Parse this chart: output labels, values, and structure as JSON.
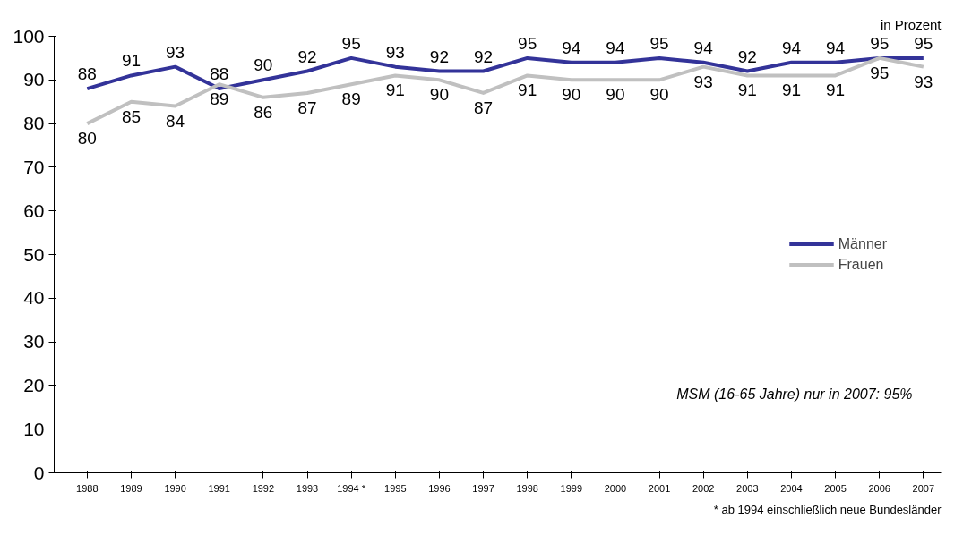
{
  "chart_data": {
    "type": "line",
    "categories": [
      "1988",
      "1989",
      "1990",
      "1991",
      "1992",
      "1993",
      "1994 *",
      "1995",
      "1996",
      "1997",
      "1998",
      "1999",
      "2000",
      "2001",
      "2002",
      "2003",
      "2004",
      "2005",
      "2006",
      "2007"
    ],
    "series": [
      {
        "name": "Männer",
        "color": "#333399",
        "values": [
          88,
          91,
          93,
          88,
          90,
          92,
          95,
          93,
          92,
          92,
          95,
          94,
          94,
          95,
          94,
          92,
          94,
          94,
          95,
          95
        ]
      },
      {
        "name": "Frauen",
        "color": "#c0c0c0",
        "values": [
          80,
          85,
          84,
          89,
          86,
          87,
          89,
          91,
          90,
          87,
          91,
          90,
          90,
          90,
          93,
          91,
          91,
          91,
          95,
          93
        ]
      }
    ],
    "ylim": [
      0,
      100
    ],
    "yticks": [
      0,
      10,
      20,
      30,
      40,
      50,
      60,
      70,
      80,
      90,
      100
    ],
    "grid": false,
    "legend": "right",
    "data_labels": true,
    "marker": "none",
    "line_style": "solid",
    "annotations": [
      "in Prozent",
      "MSM (16-65 Jahre) nur in 2007: 95%",
      "* ab 1994 einschließlich neue Bundesländer"
    ]
  }
}
